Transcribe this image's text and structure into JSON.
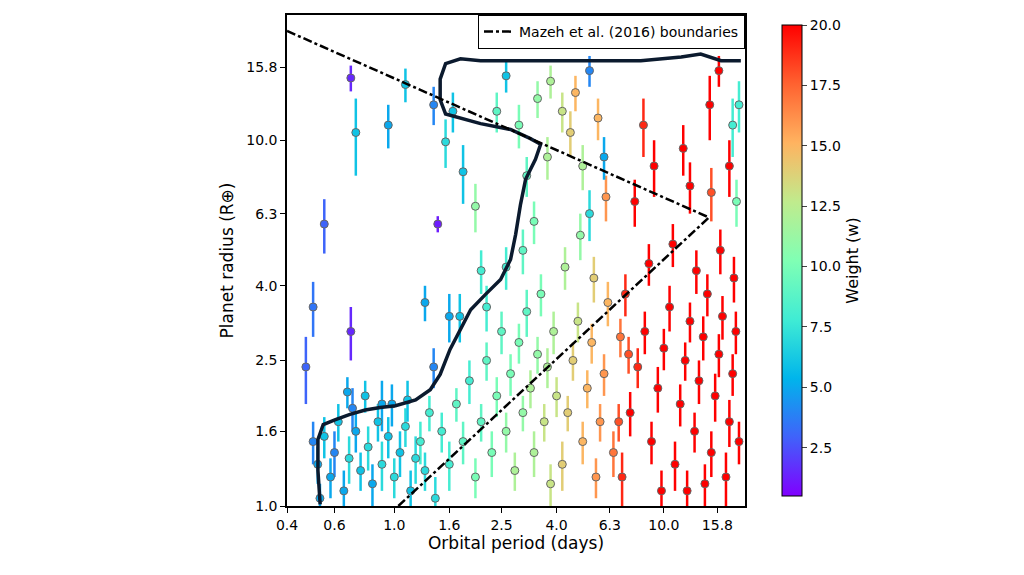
{
  "chart_data": {
    "type": "scatter",
    "x_label": "Orbital period (days)",
    "y_label": "Planet radius (R⊕)",
    "log": true,
    "grid": false,
    "legend": "upper right",
    "xlim": [
      0.4,
      20
    ],
    "ylim": [
      1.0,
      22
    ],
    "xticks": [
      0.4,
      0.6,
      {
        "value": 1,
        "label": "1.0"
      },
      1.6,
      2.5,
      {
        "value": 4,
        "label": "4.0"
      },
      6.3,
      {
        "value": 10,
        "label": "10.0"
      },
      15.8
    ],
    "yticks": [
      {
        "value": 1,
        "label": "1.0"
      },
      1.6,
      2.5,
      {
        "value": 4,
        "label": "4.0"
      },
      6.3,
      {
        "value": 10,
        "label": "10.0"
      },
      15.8
    ],
    "colorbar": {
      "title": "Weight (w)",
      "range": [
        0.5,
        20
      ],
      "ticks": [
        2.5,
        {
          "value": 5,
          "label": "5.0"
        },
        7.5,
        {
          "value": 10,
          "label": "10.0"
        },
        12.5,
        {
          "value": 15,
          "label": "15.0"
        },
        17.5,
        {
          "value": 20,
          "label": "20.0"
        }
      ]
    },
    "points": {
      "x": [
        0.69,
        0.72,
        0.95,
        1.1,
        0.55,
        0.5,
        0.47,
        0.69,
        1.45,
        1.3,
        1.4,
        1.6,
        1.75,
        0.67,
        0.78,
        0.9,
        1.55,
        1.65,
        1.8,
        1.4,
        2.0,
        2.1,
        2.6,
        5.3,
        0.52,
        0.55,
        0.58,
        0.6,
        0.62,
        0.65,
        0.68,
        0.72,
        0.75,
        0.8,
        0.83,
        0.87,
        0.9,
        0.95,
        1.0,
        1.05,
        1.1,
        1.15,
        1.2,
        1.25,
        1.3,
        1.35,
        1.42,
        1.5,
        0.5,
        0.53,
        0.7,
        0.98,
        1.12,
        1.6,
        1.7,
        1.8,
        1.9,
        2.0,
        2.1,
        2.2,
        2.3,
        2.4,
        2.5,
        2.6,
        2.7,
        2.8,
        2.9,
        3.0,
        3.1,
        3.2,
        3.3,
        3.4,
        3.5,
        3.6,
        3.7,
        3.8,
        3.9,
        4.0,
        2.2,
        2.6,
        3.0,
        3.3,
        2.9,
        3.4,
        3.7,
        2.4,
        3.1,
        3.8,
        4.2,
        4.4,
        4.6,
        4.8,
        5.0,
        5.2,
        5.4,
        5.6,
        5.8,
        6.0,
        6.2,
        6.5,
        4.3,
        4.9,
        5.5,
        4.5,
        5.0,
        5.7,
        6.1,
        4.2,
        5.3,
        6.0,
        4.7,
        7,
        7.5,
        8,
        8.5,
        9,
        9.5,
        10,
        10.5,
        11,
        11.5,
        12,
        12.5,
        13,
        13.5,
        14,
        14.5,
        15,
        15.5,
        16,
        16.5,
        17,
        17.5,
        18,
        18.5,
        19,
        7.2,
        8.8,
        10.8,
        13.2,
        16.2,
        18.2,
        7.8,
        9.2,
        11.8,
        8.4,
        14.8,
        17.5,
        16.0,
        12.5,
        18.0,
        19.0,
        18.6,
        15.0,
        6.8,
        7.4,
        6.9,
        12.2,
        9.8,
        14.2
      ],
      "y": [
        14.8,
        10.5,
        11.0,
        14.2,
        5.9,
        3.5,
        2.4,
        3.0,
        5.9,
        3.6,
        2.4,
        3.3,
        3.3,
        2.05,
        2.0,
        1.9,
        9.9,
        12.0,
        8.2,
        12.5,
        6.6,
        4.4,
        15.0,
        15.5,
        1.3,
        1.55,
        1.2,
        1.4,
        1.7,
        1.1,
        1.35,
        1.6,
        1.25,
        1.45,
        1.15,
        1.7,
        1.3,
        1.55,
        1.2,
        1.4,
        1.65,
        1.1,
        1.35,
        1.5,
        1.25,
        1.8,
        1.05,
        1.6,
        1.5,
        1.05,
        1.85,
        1.9,
        1.95,
        1.3,
        1.9,
        1.5,
        2.2,
        1.2,
        1.7,
        2.5,
        1.4,
        2.0,
        3.0,
        1.6,
        2.3,
        1.25,
        2.8,
        1.8,
        3.4,
        2.1,
        1.4,
        2.6,
        3.8,
        1.7,
        2.4,
        1.15,
        3.0,
        2.0,
        3.5,
        4.5,
        5.0,
        6.0,
        11,
        13,
        9,
        12,
        8.0,
        14.5,
        1.3,
        1.8,
        2.5,
        3.2,
        1.5,
        2.1,
        2.8,
        1.2,
        1.7,
        2.3,
        3.6,
        1.4,
        4.5,
        5.5,
        4.2,
        10.5,
        8.5,
        11.5,
        7.0,
        12.0,
        6.3,
        9.0,
        13.5,
        1.2,
        1.8,
        2.4,
        3.0,
        1.5,
        2.1,
        2.7,
        3.5,
        1.3,
        1.9,
        2.5,
        3.2,
        1.6,
        2.2,
        2.9,
        3.8,
        1.4,
        2.0,
        2.6,
        3.3,
        1.2,
        1.7,
        2.3,
        3.0,
        1.5,
        3.8,
        4.6,
        5.2,
        4.4,
        5.0,
        4.2,
        6.8,
        8.5,
        9.5,
        11,
        12.5,
        8.5,
        15.5,
        7.5,
        11,
        12.5,
        6.8,
        7.2,
        1.7,
        2.6,
        2.9,
        1.1,
        1.1,
        1.15
      ],
      "weight": [
        1.5,
        6,
        5,
        6,
        3,
        3.5,
        3,
        1.5,
        1.2,
        5,
        4,
        5,
        6,
        5,
        6,
        5,
        7,
        6,
        6,
        4,
        11,
        8,
        6,
        4,
        5,
        6,
        5,
        4,
        6,
        5,
        7,
        5,
        6,
        7,
        5,
        6,
        7,
        6,
        7,
        6,
        7,
        6,
        7,
        8,
        7,
        8,
        7,
        8,
        4,
        5,
        4,
        5,
        6,
        8,
        9,
        9,
        8,
        10,
        9,
        9,
        10,
        10,
        9,
        11,
        10,
        12,
        10,
        11,
        9,
        12,
        12,
        11,
        10,
        13,
        12,
        13,
        12,
        13,
        8,
        8,
        9,
        10,
        10,
        11,
        12,
        9,
        9,
        12,
        14,
        14,
        14,
        13,
        15,
        15,
        15,
        16,
        16,
        16,
        15,
        17,
        12,
        11,
        14,
        14,
        12,
        15,
        16,
        13,
        7,
        5,
        15,
        19,
        20,
        19,
        20,
        20,
        20,
        20,
        20,
        20,
        20,
        20,
        20,
        20,
        20,
        20,
        20,
        20,
        20,
        20,
        20,
        20,
        20,
        20,
        20,
        20,
        19,
        20,
        20,
        20,
        20,
        20,
        20,
        20,
        20,
        19,
        20,
        20,
        20,
        20,
        8,
        8,
        10,
        18,
        18,
        18,
        17,
        20,
        20,
        20
      ],
      "radius_error": [
        1.2,
        2.5,
        1.5,
        1.5,
        1.0,
        0.6,
        0.5,
        0.5,
        0.3,
        0.4,
        0.3,
        0.5,
        0.5,
        0.2,
        0.2,
        0.3,
        1.5,
        1.5,
        1.5,
        1.5,
        1.0,
        0.6,
        1.5,
        1.5,
        0.15,
        0.2,
        0.15,
        0.2,
        0.2,
        0.15,
        0.2,
        0.2,
        0.15,
        0.2,
        0.15,
        0.2,
        0.2,
        0.2,
        0.15,
        0.2,
        0.2,
        0.15,
        0.2,
        0.2,
        0.15,
        0.2,
        0.15,
        0.2,
        0.2,
        0.1,
        0.25,
        0.25,
        0.25,
        0.2,
        0.2,
        0.2,
        0.3,
        0.15,
        0.2,
        0.3,
        0.2,
        0.25,
        0.4,
        0.2,
        0.3,
        0.15,
        0.35,
        0.2,
        0.5,
        0.25,
        0.2,
        0.3,
        0.5,
        0.2,
        0.3,
        0.15,
        0.4,
        0.25,
        0.5,
        0.6,
        0.7,
        0.8,
        1.5,
        1.5,
        1.2,
        1.5,
        1.0,
        1.5,
        0.2,
        0.2,
        0.3,
        0.4,
        0.2,
        0.25,
        0.35,
        0.15,
        0.2,
        0.3,
        0.5,
        0.2,
        0.6,
        0.8,
        0.6,
        1.5,
        1.2,
        1.5,
        1.0,
        1.5,
        1.0,
        1.2,
        1.5,
        0.2,
        0.25,
        0.3,
        0.4,
        0.2,
        0.3,
        0.35,
        0.5,
        0.2,
        0.25,
        0.3,
        0.4,
        0.2,
        0.3,
        0.4,
        0.5,
        0.2,
        0.3,
        0.35,
        0.45,
        0.2,
        0.25,
        0.3,
        0.4,
        0.2,
        0.5,
        0.6,
        0.7,
        0.6,
        0.7,
        0.6,
        1,
        1.5,
        1.5,
        2,
        2.5,
        1.5,
        1.5,
        1.2,
        2,
        2,
        1,
        1.2,
        0.2,
        0.3,
        0.35,
        0.15,
        0.15,
        0.15
      ]
    },
    "series": [
      {
        "color": "#0b1a2e",
        "line_style": "solid",
        "x": [
          0.531,
          0.521,
          0.521,
          0.545,
          0.602,
          0.685,
          0.78,
          0.887,
          1.01,
          1.2,
          1.36,
          1.48,
          1.61,
          1.76,
          1.92,
          2.18,
          2.48,
          2.7,
          2.82,
          2.94,
          3.07,
          3.34,
          3.49,
          3.2,
          2.7,
          2.09,
          1.55,
          1.48,
          1.48,
          1.55,
          1.76,
          2.09,
          2.7,
          4.14,
          5.83,
          8.21,
          11.6,
          13.7,
          16.3,
          19.3
        ],
        "y": [
          1.01,
          1.25,
          1.52,
          1.67,
          1.72,
          1.78,
          1.83,
          1.86,
          1.88,
          1.95,
          2.08,
          2.29,
          2.68,
          3.04,
          3.44,
          3.79,
          4.16,
          4.72,
          5.53,
          6.68,
          7.82,
          8.87,
          9.75,
          10.1,
          10.7,
          11.1,
          11.8,
          12.9,
          14.7,
          16.2,
          16.7,
          16.5,
          16.5,
          16.5,
          16.5,
          16.5,
          16.9,
          17.2,
          16.5,
          16.5
        ]
      },
      {
        "name": "Mazeh et al. (2016) boundaries",
        "color": "#000000",
        "line_style": "dashdot",
        "x": [
          0.4,
          14.7,
          null,
          1.035,
          14.7
        ],
        "y": [
          19.9,
          6.15,
          null,
          1.0,
          6.15
        ]
      }
    ]
  }
}
